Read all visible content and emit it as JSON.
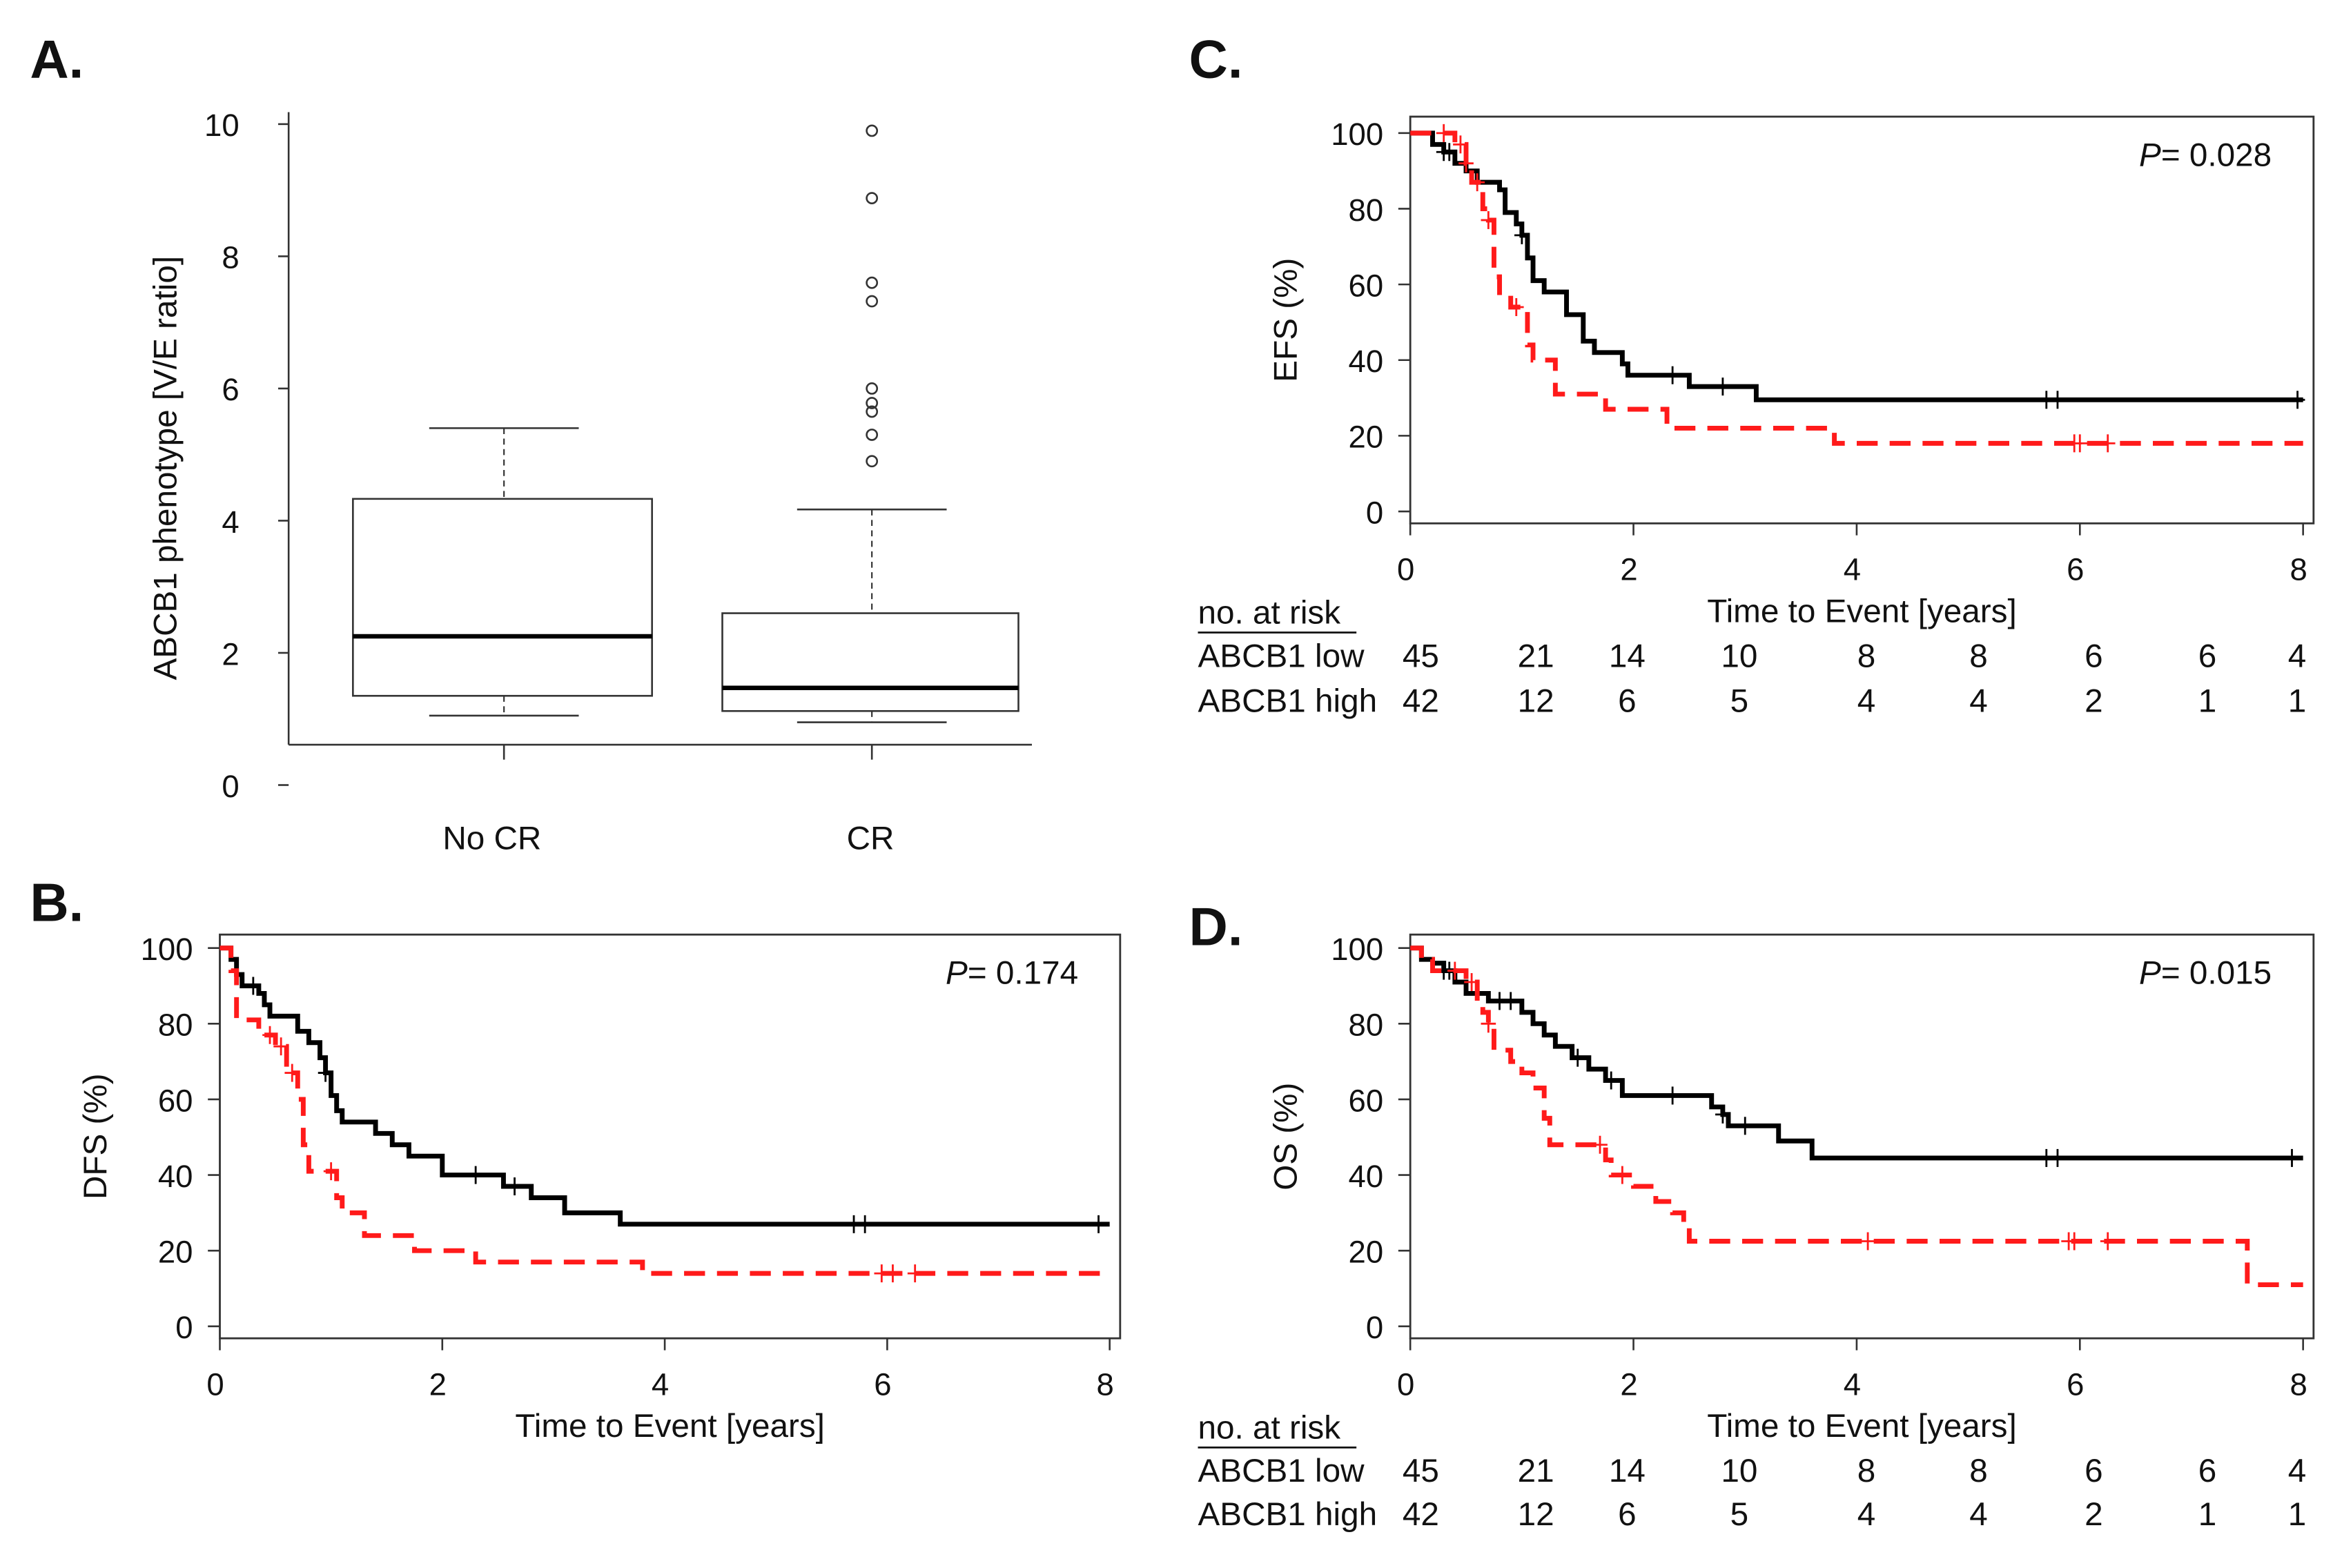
{
  "chart_data": [
    {
      "panel": "A.",
      "type": "box",
      "ylabel": "ABCB1 phenotype [V/E ratio]",
      "yticks": [
        "0",
        "2",
        "4",
        "6",
        "8",
        "10"
      ],
      "ylim": [
        0,
        10
      ],
      "categories": [
        "No CR",
        "CR"
      ],
      "boxes": [
        {
          "name": "No CR",
          "whisker_low": 1.05,
          "q1": 1.35,
          "median": 2.25,
          "q3": 4.33,
          "whisker_high": 5.4,
          "outliers": []
        },
        {
          "name": "CR",
          "whisker_low": 0.95,
          "q1": 1.12,
          "median": 1.47,
          "q3": 2.6,
          "whisker_high": 4.17,
          "outliers": [
            9.9,
            8.88,
            7.6,
            7.32,
            6.0,
            5.78,
            5.65,
            5.3,
            4.9
          ]
        }
      ]
    },
    {
      "panel": "B.",
      "type": "line",
      "subtype": "kaplan-meier",
      "ylabel": "DFS (%)",
      "xlabel": "Time to Event [years]",
      "p_label": "P",
      "p_value": "= 0.174",
      "xticks": [
        "0",
        "2",
        "4",
        "6",
        "8"
      ],
      "yticks": [
        "0",
        "20",
        "40",
        "60",
        "80",
        "100"
      ],
      "xlim": [
        0,
        8
      ],
      "ylim": [
        0,
        100
      ],
      "series": [
        {
          "name": "ABCB1 low",
          "color": "#000000",
          "dashed": false,
          "steps": [
            [
              0,
              100
            ],
            [
              0.1,
              97
            ],
            [
              0.15,
              93
            ],
            [
              0.2,
              90
            ],
            [
              0.35,
              88
            ],
            [
              0.4,
              85
            ],
            [
              0.45,
              82
            ],
            [
              0.7,
              78
            ],
            [
              0.8,
              75
            ],
            [
              0.9,
              71
            ],
            [
              0.95,
              67
            ],
            [
              1.0,
              61
            ],
            [
              1.05,
              57
            ],
            [
              1.1,
              54
            ],
            [
              1.4,
              51
            ],
            [
              1.55,
              48
            ],
            [
              1.7,
              45
            ],
            [
              2.0,
              40
            ],
            [
              2.55,
              37
            ],
            [
              2.8,
              34
            ],
            [
              3.1,
              30
            ],
            [
              3.6,
              27
            ]
          ],
          "censored": [
            0.3,
            0.95,
            2.3,
            2.65,
            5.7,
            5.8,
            7.9
          ]
        },
        {
          "name": "ABCB1 high",
          "color": "#ff1a1a",
          "dashed": true,
          "steps": [
            [
              0,
              100
            ],
            [
              0.1,
              94
            ],
            [
              0.15,
              81
            ],
            [
              0.35,
              77
            ],
            [
              0.5,
              74
            ],
            [
              0.6,
              67
            ],
            [
              0.7,
              60
            ],
            [
              0.75,
              48
            ],
            [
              0.8,
              41
            ],
            [
              1.05,
              34
            ],
            [
              1.1,
              30
            ],
            [
              1.3,
              24
            ],
            [
              1.75,
              20
            ],
            [
              2.3,
              17
            ],
            [
              3.8,
              14
            ]
          ],
          "censored": [
            0.45,
            0.55,
            0.65,
            1.0,
            5.95,
            6.05,
            6.25
          ]
        }
      ]
    },
    {
      "panel": "C.",
      "type": "line",
      "subtype": "kaplan-meier",
      "ylabel": "EFS (%)",
      "xlabel": "Time to Event [years]",
      "p_label": "P",
      "p_value": "= 0.028",
      "xticks": [
        "0",
        "2",
        "4",
        "6",
        "8"
      ],
      "yticks": [
        "0",
        "20",
        "40",
        "60",
        "80",
        "100"
      ],
      "xlim": [
        0,
        8
      ],
      "ylim": [
        0,
        100
      ],
      "series": [
        {
          "name": "ABCB1 low",
          "color": "#000000",
          "dashed": false,
          "steps": [
            [
              0,
              100
            ],
            [
              0.2,
              97
            ],
            [
              0.3,
              95
            ],
            [
              0.4,
              92
            ],
            [
              0.5,
              90
            ],
            [
              0.6,
              87
            ],
            [
              0.8,
              85
            ],
            [
              0.85,
              79
            ],
            [
              0.95,
              76
            ],
            [
              1.0,
              73
            ],
            [
              1.05,
              67
            ],
            [
              1.1,
              61
            ],
            [
              1.2,
              58
            ],
            [
              1.4,
              52
            ],
            [
              1.55,
              45
            ],
            [
              1.65,
              42
            ],
            [
              1.9,
              39
            ],
            [
              1.95,
              36
            ],
            [
              2.5,
              33
            ],
            [
              3.1,
              29.5
            ]
          ],
          "censored": [
            0.3,
            0.35,
            1.0,
            2.35,
            2.8,
            5.7,
            5.8,
            7.95
          ]
        },
        {
          "name": "ABCB1 high",
          "color": "#ff1a1a",
          "dashed": true,
          "steps": [
            [
              0,
              100
            ],
            [
              0.4,
              97
            ],
            [
              0.5,
              92
            ],
            [
              0.55,
              87
            ],
            [
              0.65,
              80
            ],
            [
              0.7,
              77
            ],
            [
              0.75,
              62
            ],
            [
              0.8,
              57
            ],
            [
              0.9,
              54
            ],
            [
              1.05,
              44
            ],
            [
              1.1,
              40
            ],
            [
              1.3,
              31
            ],
            [
              1.75,
              27
            ],
            [
              2.3,
              22
            ],
            [
              3.8,
              18
            ]
          ],
          "censored": [
            0.3,
            0.45,
            0.5,
            0.6,
            0.7,
            0.95,
            5.95,
            6.0,
            6.25
          ]
        }
      ],
      "risk_table": {
        "title": "no. at risk",
        "rows": [
          {
            "label": "ABCB1 low",
            "color": "#000000",
            "values": [
              "45",
              "21",
              "14",
              "10",
              "8",
              "8",
              "6",
              "6",
              "4"
            ]
          },
          {
            "label": "ABCB1 high",
            "color": "#ff1a1a",
            "values": [
              "42",
              "12",
              "6",
              "5",
              "4",
              "4",
              "2",
              "1",
              "1"
            ]
          }
        ]
      }
    },
    {
      "panel": "D.",
      "type": "line",
      "subtype": "kaplan-meier",
      "ylabel": "OS (%)",
      "xlabel": "Time to Event [years]",
      "p_label": "P",
      "p_value": "= 0.015",
      "xticks": [
        "0",
        "2",
        "4",
        "6",
        "8"
      ],
      "yticks": [
        "0",
        "20",
        "40",
        "60",
        "80",
        "100"
      ],
      "xlim": [
        0,
        8
      ],
      "ylim": [
        0,
        100
      ],
      "series": [
        {
          "name": "ABCB1 low",
          "color": "#000000",
          "dashed": false,
          "steps": [
            [
              0,
              100
            ],
            [
              0.1,
              97
            ],
            [
              0.2,
              96
            ],
            [
              0.3,
              94
            ],
            [
              0.4,
              91
            ],
            [
              0.5,
              88
            ],
            [
              0.7,
              86
            ],
            [
              1.0,
              83
            ],
            [
              1.1,
              80
            ],
            [
              1.2,
              77
            ],
            [
              1.3,
              74
            ],
            [
              1.45,
              71
            ],
            [
              1.6,
              68
            ],
            [
              1.75,
              65
            ],
            [
              1.9,
              61
            ],
            [
              2.7,
              58
            ],
            [
              2.8,
              56
            ],
            [
              2.85,
              53
            ],
            [
              3.3,
              49
            ],
            [
              3.6,
              44.5
            ]
          ],
          "censored": [
            0.3,
            0.35,
            0.8,
            0.9,
            1.5,
            1.8,
            2.35,
            2.8,
            3.0,
            5.7,
            5.8,
            7.9
          ]
        },
        {
          "name": "ABCB1 high",
          "color": "#ff1a1a",
          "dashed": true,
          "steps": [
            [
              0,
              100
            ],
            [
              0.1,
              97
            ],
            [
              0.2,
              94
            ],
            [
              0.5,
              91
            ],
            [
              0.6,
              86
            ],
            [
              0.65,
              83
            ],
            [
              0.7,
              80
            ],
            [
              0.75,
              73
            ],
            [
              0.9,
              70
            ],
            [
              1.0,
              67
            ],
            [
              1.1,
              63
            ],
            [
              1.2,
              55
            ],
            [
              1.25,
              48
            ],
            [
              1.75,
              44
            ],
            [
              1.8,
              40
            ],
            [
              2.0,
              37
            ],
            [
              2.2,
              33
            ],
            [
              2.35,
              30
            ],
            [
              2.45,
              26
            ],
            [
              2.5,
              22.5
            ],
            [
              7.5,
              11
            ]
          ],
          "censored": [
            0.4,
            0.55,
            0.7,
            1.7,
            1.9,
            4.1,
            5.9,
            5.95,
            6.25
          ]
        }
      ],
      "risk_table": {
        "title": "no. at risk",
        "rows": [
          {
            "label": "ABCB1 low",
            "color": "#000000",
            "values": [
              "45",
              "21",
              "14",
              "10",
              "8",
              "8",
              "6",
              "6",
              "4"
            ]
          },
          {
            "label": "ABCB1 high",
            "color": "#ff1a1a",
            "values": [
              "42",
              "12",
              "6",
              "5",
              "4",
              "4",
              "2",
              "1",
              "1"
            ]
          }
        ]
      }
    }
  ]
}
